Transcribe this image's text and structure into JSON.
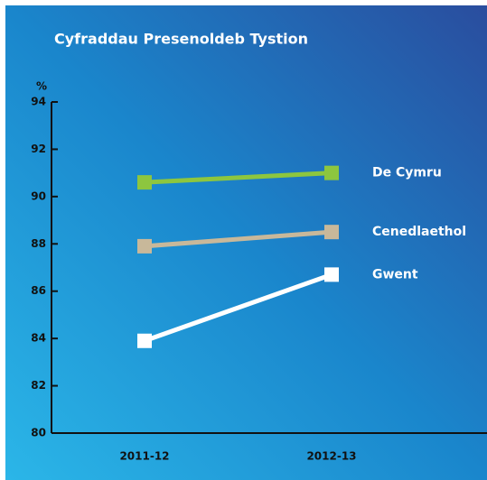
{
  "chart_data": {
    "type": "line",
    "title": "Cyfraddau Presenoldeb Tystion",
    "y_label": "%",
    "categories": [
      "2011-12",
      "2012-13"
    ],
    "series": [
      {
        "name": "De Cymru",
        "color": "#8dc63f",
        "values": [
          90.6,
          91.0
        ]
      },
      {
        "name": "Cenedlaethol",
        "color": "#c8b89a",
        "values": [
          87.9,
          88.5
        ]
      },
      {
        "name": "Gwent",
        "color": "#ffffff",
        "values": [
          83.9,
          86.7
        ]
      }
    ],
    "ylim": [
      80,
      94
    ],
    "yticks": [
      80,
      82,
      84,
      86,
      88,
      90,
      92,
      94
    ]
  }
}
